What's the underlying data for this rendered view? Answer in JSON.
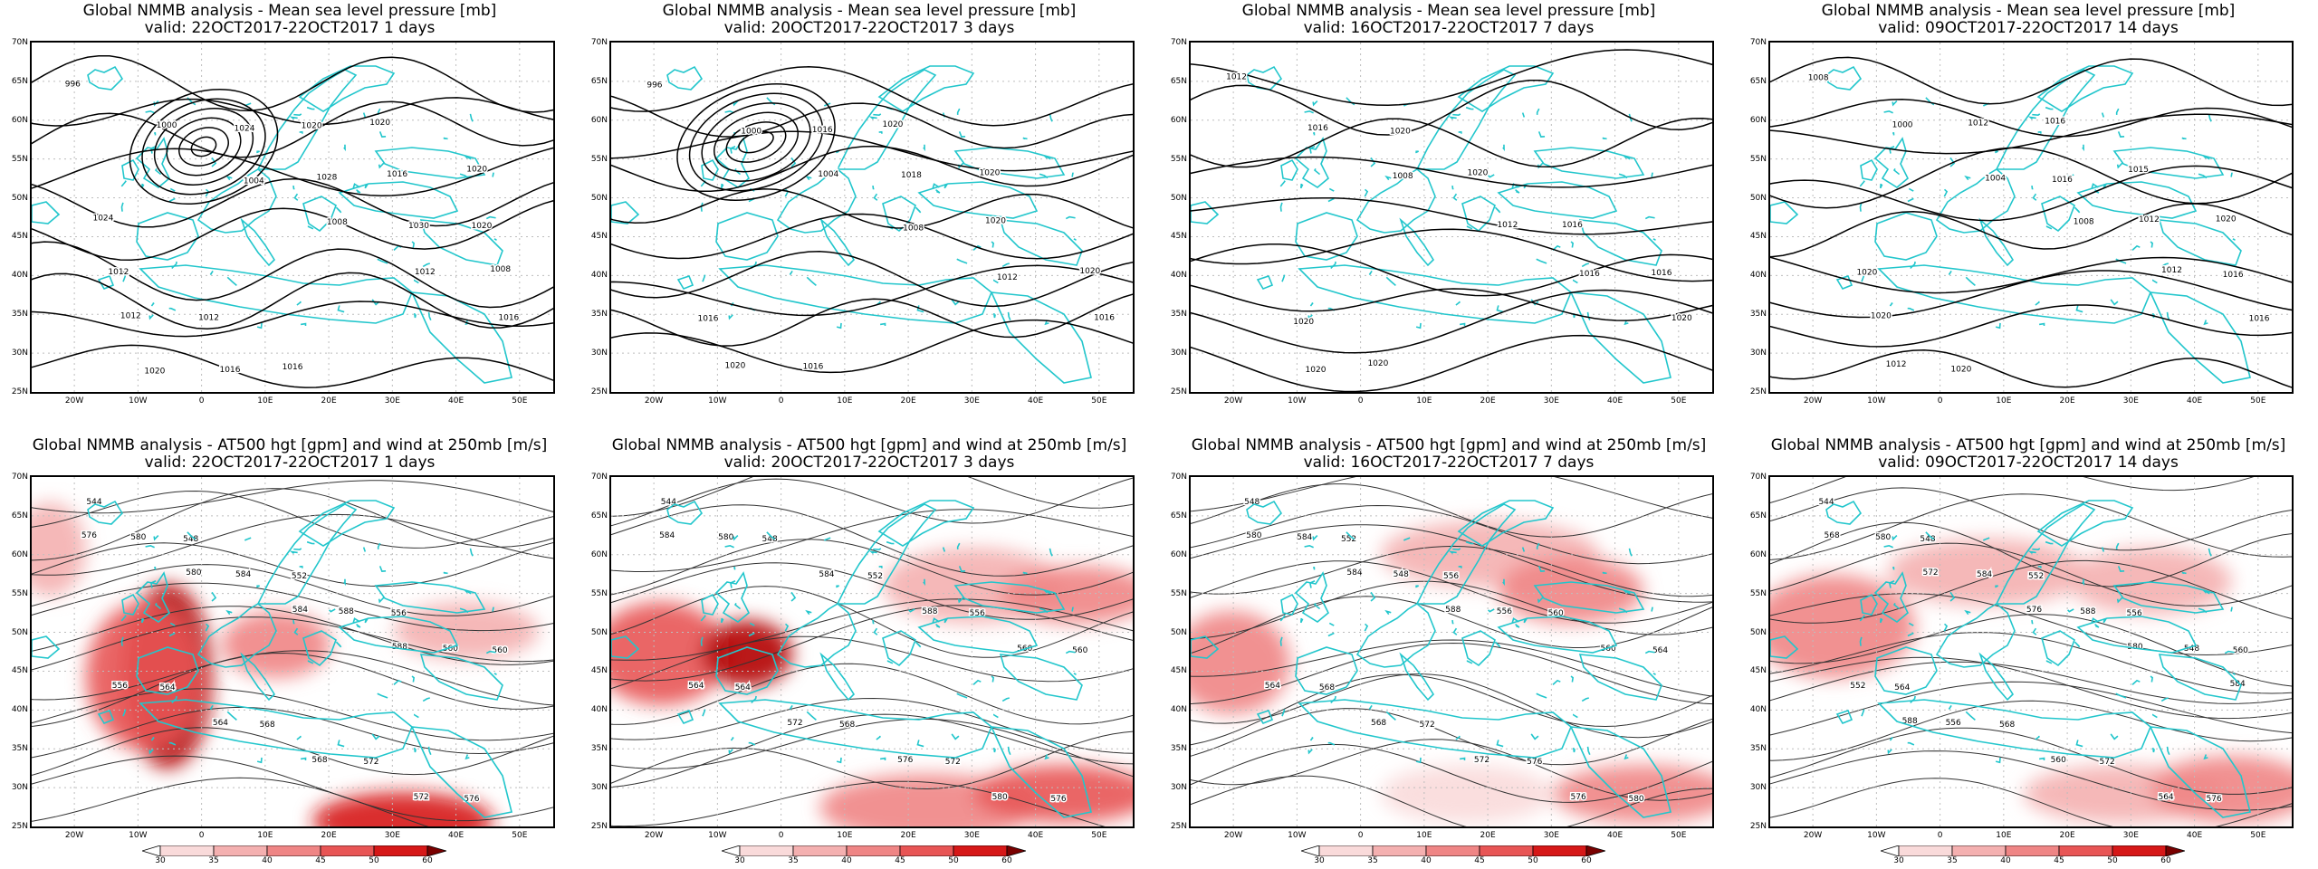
{
  "panels": [
    {
      "title": "Global NMMB analysis - Mean sea level pressure [mb]",
      "valid": "valid: 22OCT2017-22OCT2017  1 days",
      "kind": "mslp",
      "labels": [
        "996",
        "1000",
        "1004",
        "1008",
        "1012",
        "1016",
        "1020",
        "1024",
        "1028",
        "1030",
        "1008",
        "1012",
        "1016",
        "1020",
        "1016",
        "1020",
        "1012",
        "1012",
        "1016",
        "1020",
        "1020",
        "1024"
      ]
    },
    {
      "title": "Global NMMB analysis - Mean sea level pressure [mb]",
      "valid": "valid: 20OCT2017-22OCT2017  3 days",
      "kind": "mslp",
      "labels": [
        "996",
        "1000",
        "1004",
        "1008",
        "1012",
        "1016",
        "1020",
        "1016",
        "1018",
        "1020",
        "1020",
        "1016",
        "1016",
        "1020",
        "1020"
      ]
    },
    {
      "title": "Global NMMB analysis - Mean sea level pressure [mb]",
      "valid": "valid: 16OCT2017-22OCT2017  7 days",
      "kind": "mslp",
      "labels": [
        "1012",
        "1016",
        "1008",
        "1012",
        "1016",
        "1020",
        "1020",
        "1020",
        "1020",
        "1016",
        "1016",
        "1020",
        "1020"
      ]
    },
    {
      "title": "Global NMMB analysis - Mean sea level pressure [mb]",
      "valid": "valid: 09OCT2017-22OCT2017  14 days",
      "kind": "mslp",
      "labels": [
        "1008",
        "1000",
        "1004",
        "1008",
        "1012",
        "1016",
        "1012",
        "1012",
        "1016",
        "1012",
        "1016",
        "1020",
        "1020",
        "1016",
        "1015",
        "1020",
        "1020"
      ]
    },
    {
      "title": "Global NMMB analysis - AT500 hgt [gpm] and wind at 250mb [m/s]",
      "valid": "valid: 22OCT2017-22OCT2017  1 days",
      "kind": "z500",
      "labels": [
        "544",
        "548",
        "552",
        "556",
        "560",
        "564",
        "568",
        "572",
        "576",
        "580",
        "584",
        "588",
        "560",
        "556",
        "564",
        "568",
        "572",
        "576",
        "580",
        "584",
        "588"
      ]
    },
    {
      "title": "Global NMMB analysis - AT500 hgt [gpm] and wind at 250mb [m/s]",
      "valid": "valid: 20OCT2017-22OCT2017  3 days",
      "kind": "z500",
      "labels": [
        "544",
        "548",
        "552",
        "556",
        "560",
        "564",
        "568",
        "572",
        "576",
        "580",
        "584",
        "588",
        "560",
        "564",
        "572",
        "576",
        "580",
        "584"
      ]
    },
    {
      "title": "Global NMMB analysis - AT500 hgt [gpm] and wind at 250mb [m/s]",
      "valid": "valid: 16OCT2017-22OCT2017  7 days",
      "kind": "z500",
      "labels": [
        "548",
        "552",
        "556",
        "560",
        "564",
        "568",
        "572",
        "576",
        "580",
        "584",
        "548",
        "556",
        "560",
        "564",
        "568",
        "572",
        "576",
        "580",
        "584",
        "588"
      ]
    },
    {
      "title": "Global NMMB analysis - AT500 hgt [gpm] and wind at 250mb [m/s]",
      "valid": "valid: 09OCT2017-22OCT2017  14 days",
      "kind": "z500",
      "labels": [
        "544",
        "548",
        "552",
        "556",
        "560",
        "564",
        "568",
        "572",
        "576",
        "580",
        "584",
        "588",
        "548",
        "552",
        "556",
        "560",
        "564",
        "568",
        "572",
        "576",
        "580",
        "584",
        "588"
      ]
    }
  ],
  "axes": {
    "y_ticks": [
      "70N",
      "65N",
      "60N",
      "55N",
      "50N",
      "45N",
      "40N",
      "35N",
      "30N",
      "25N"
    ],
    "x_ticks": [
      "20W",
      "10W",
      "0",
      "10E",
      "20E",
      "30E",
      "40E",
      "50E"
    ]
  },
  "colorbar": {
    "labels": [
      "30",
      "35",
      "40",
      "45",
      "50",
      "60"
    ],
    "colors": [
      "#ffffff",
      "#f9dada",
      "#f4b0b0",
      "#ef8585",
      "#e85555",
      "#d61818",
      "#7a0000"
    ]
  },
  "colors": {
    "coast": "#22c6cc",
    "isoline_mslp": "#000000",
    "isoline_z500": "#333333",
    "grid": "#bdbdbd",
    "wind": "#e62020"
  }
}
